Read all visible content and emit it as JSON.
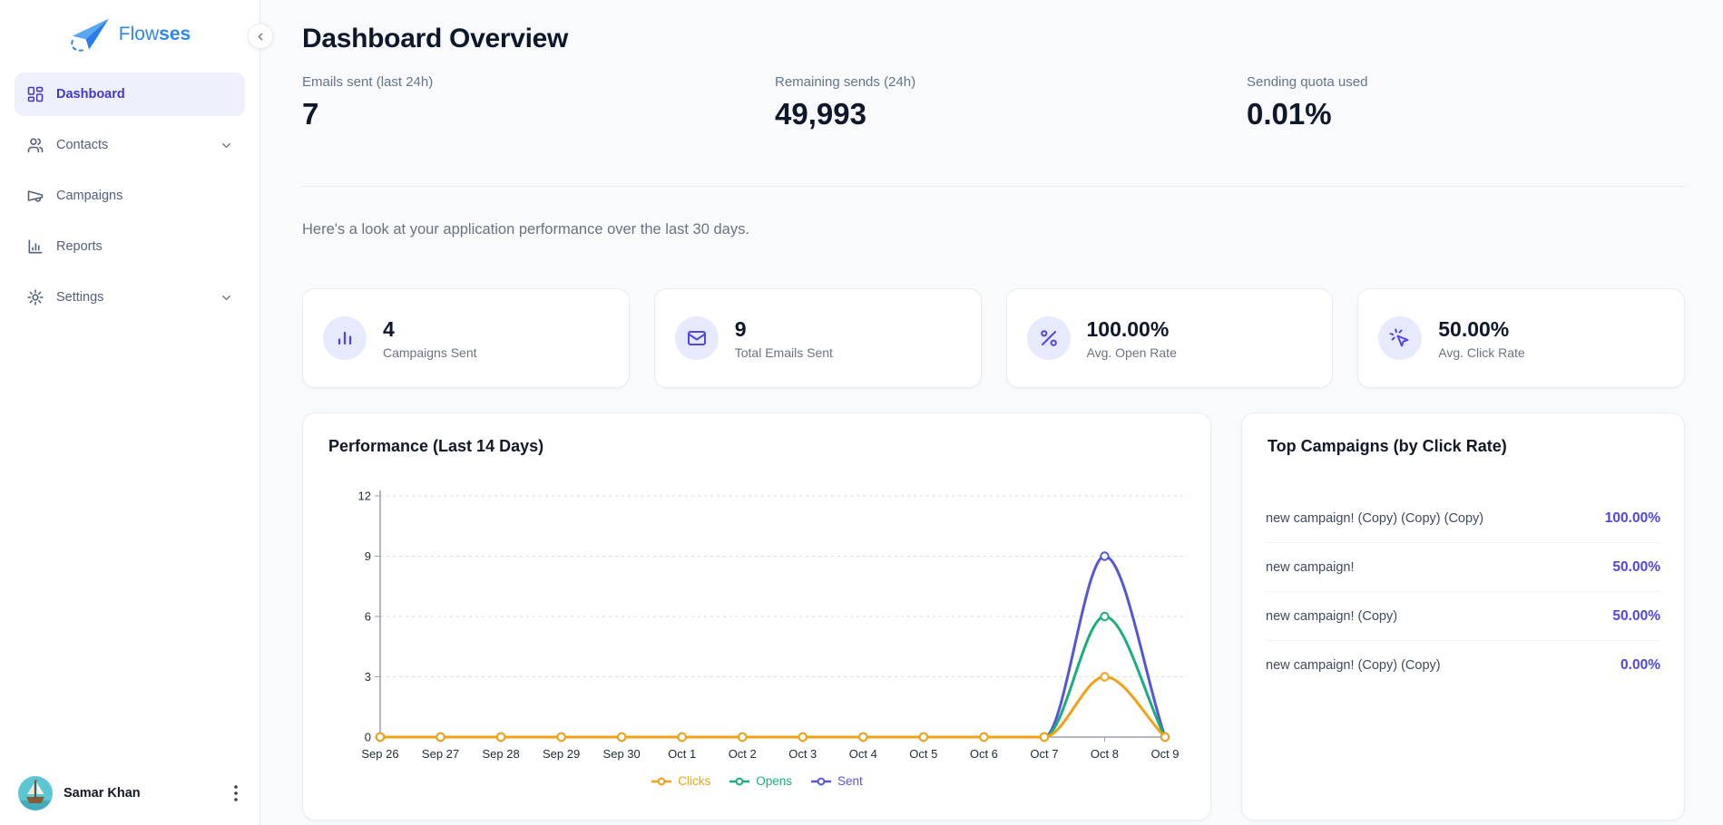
{
  "brand": {
    "name_part1": "Flow",
    "name_part2": "ses"
  },
  "sidebar": {
    "items": [
      {
        "label": "Dashboard"
      },
      {
        "label": "Contacts"
      },
      {
        "label": "Campaigns"
      },
      {
        "label": "Reports"
      },
      {
        "label": "Settings"
      }
    ],
    "user": {
      "name": "Samar Khan"
    }
  },
  "header": {
    "title": "Dashboard Overview",
    "subtitle": "Here's a look at your application performance over the last 30 days.",
    "stats": [
      {
        "label": "Emails sent (last 24h)",
        "value": "7"
      },
      {
        "label": "Remaining sends (24h)",
        "value": "49,993"
      },
      {
        "label": "Sending quota used",
        "value": "0.01%"
      }
    ]
  },
  "stat_cards": [
    {
      "icon": "bar-chart-icon",
      "value": "4",
      "label": "Campaigns Sent"
    },
    {
      "icon": "envelope-icon",
      "value": "9",
      "label": "Total Emails Sent"
    },
    {
      "icon": "percent-icon",
      "value": "100.00%",
      "label": "Avg. Open Rate"
    },
    {
      "icon": "cursor-click-icon",
      "value": "50.00%",
      "label": "Avg. Click Rate"
    }
  ],
  "chart_data": {
    "type": "line",
    "title": "Performance (Last 14 Days)",
    "x": [
      "Sep 26",
      "Sep 27",
      "Sep 28",
      "Sep 29",
      "Sep 30",
      "Oct 1",
      "Oct 2",
      "Oct 3",
      "Oct 4",
      "Oct 5",
      "Oct 6",
      "Oct 7",
      "Oct 8",
      "Oct 9"
    ],
    "series": [
      {
        "name": "Clicks",
        "color": "#F2A014",
        "values": [
          0,
          0,
          0,
          0,
          0,
          0,
          0,
          0,
          0,
          0,
          0,
          0,
          3,
          0
        ]
      },
      {
        "name": "Opens",
        "color": "#18AE7E",
        "values": [
          0,
          0,
          0,
          0,
          0,
          0,
          0,
          0,
          0,
          0,
          0,
          0,
          6,
          0
        ]
      },
      {
        "name": "Sent",
        "color": "#5456D6",
        "values": [
          0,
          0,
          0,
          0,
          0,
          0,
          0,
          0,
          0,
          0,
          0,
          0,
          9,
          0
        ]
      }
    ],
    "ylim": [
      0,
      12
    ],
    "yticks": [
      0,
      3,
      6,
      9,
      12
    ],
    "grid": "horizontal-dashed",
    "legend_position": "bottom"
  },
  "top_campaigns": {
    "title": "Top Campaigns (by Click Rate)",
    "rows": [
      {
        "name": "new campaign! (Copy) (Copy) (Copy)",
        "rate": "100.00%"
      },
      {
        "name": "new campaign!",
        "rate": "50.00%"
      },
      {
        "name": "new campaign! (Copy)",
        "rate": "50.00%"
      },
      {
        "name": "new campaign! (Copy) (Copy)",
        "rate": "0.00%"
      }
    ]
  },
  "colors": {
    "accent": "#4F46E5",
    "accent_soft": "#E7E9FC",
    "active_nav_bg": "#EEF1FB",
    "page_bg": "#F8FAFC",
    "brand_blue": "#2F87EE"
  }
}
